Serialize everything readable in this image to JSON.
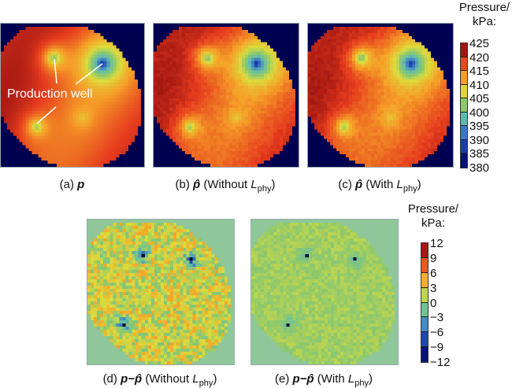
{
  "chart_data": [
    {
      "type": "heatmap",
      "title": "(a) p",
      "caption": {
        "prefix": "(a) ",
        "symbol": "p",
        "rest": ""
      },
      "colormap": "pressure"
    },
    {
      "type": "heatmap",
      "title": "(b) p̂ (Without L_phy)",
      "caption": {
        "prefix": "(b) ",
        "symbol": "p̂",
        "rest": " (Without ",
        "L": "L",
        "sub": "phy",
        "close": ")"
      },
      "colormap": "pressure"
    },
    {
      "type": "heatmap",
      "title": "(c) p̂ (With L_phy)",
      "caption": {
        "prefix": "(c) ",
        "symbol": "p̂",
        "rest": " (With ",
        "L": "L",
        "sub": "phy",
        "close": ")"
      },
      "colormap": "pressure"
    },
    {
      "type": "heatmap",
      "title": "(d) p−p̂ (Without L_phy)",
      "caption": {
        "prefix": "(d) ",
        "symbol": "p−p̂",
        "rest": " (Without ",
        "L": "L",
        "sub": "phy",
        "close": ")"
      },
      "colormap": "error",
      "noise": 1.0
    },
    {
      "type": "heatmap",
      "title": "(e) p−p̂ (With L_phy)",
      "caption": {
        "prefix": "(e) ",
        "symbol": "p−p̂",
        "rest": " (With ",
        "L": "L",
        "sub": "phy",
        "close": ")"
      },
      "colormap": "error",
      "noise": 0.3
    }
  ],
  "annotation": "Production well",
  "colorbars": {
    "pressure": {
      "title1": "Pressure/",
      "title2": "kPa:",
      "range": [
        380,
        425
      ],
      "ticks": [
        "425",
        "420",
        "415",
        "410",
        "405",
        "400",
        "395",
        "390",
        "385",
        "380"
      ]
    },
    "error": {
      "title1": "Pressure/",
      "title2": "kPa:",
      "range": [
        -12,
        12
      ],
      "ticks": [
        "12",
        "9",
        "6",
        "3",
        "0",
        "−3",
        "−6",
        "−9",
        "−12"
      ]
    }
  },
  "colors": {
    "outside_pressure": "#000050",
    "outside_error": "#8fc79a"
  }
}
